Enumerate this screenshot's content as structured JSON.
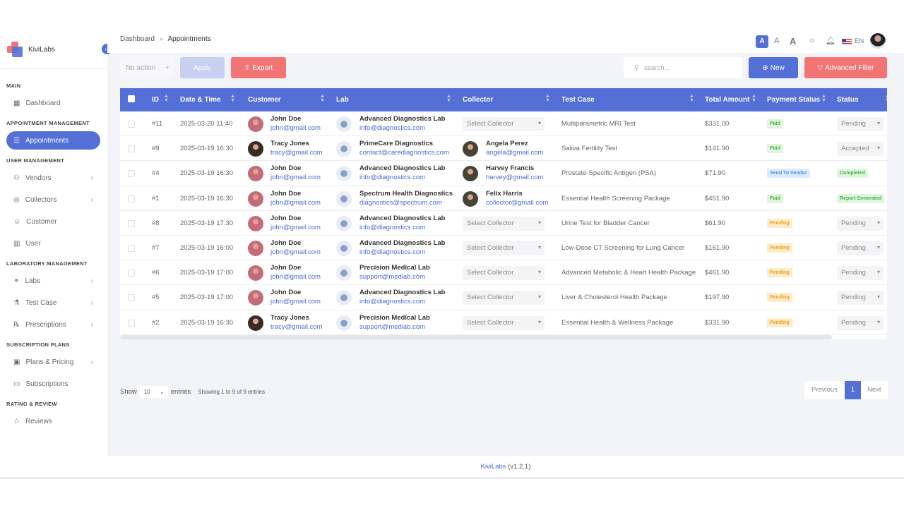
{
  "brand": {
    "name": "KiviLabs",
    "version": "(v1.2.1)"
  },
  "sidebar": {
    "sections": [
      {
        "title": "MAIN",
        "items": [
          {
            "label": "Dashboard",
            "icon": "grid-icon"
          }
        ]
      },
      {
        "title": "APPOINTMENT MANAGEMENT",
        "items": [
          {
            "label": "Appointments",
            "icon": "list-icon",
            "active": true
          }
        ]
      },
      {
        "title": "USER MANAGEMENT",
        "items": [
          {
            "label": "Vendors",
            "icon": "users-icon",
            "chevron": true
          },
          {
            "label": "Collectors",
            "icon": "collector-icon",
            "chevron": true
          },
          {
            "label": "Customer",
            "icon": "user-icon"
          },
          {
            "label": "User",
            "icon": "building-icon"
          }
        ]
      },
      {
        "title": "LABORATORY MANAGEMENT",
        "items": [
          {
            "label": "Labs",
            "icon": "link-icon",
            "chevron": true
          },
          {
            "label": "Test Case",
            "icon": "flask-icon",
            "chevron": true
          },
          {
            "label": "Prescriptions",
            "icon": "rx-icon",
            "chevron": true
          }
        ]
      },
      {
        "title": "SUBSCRIPTION PLANS",
        "items": [
          {
            "label": "Plans & Pricing",
            "icon": "bag-icon",
            "chevron": true
          },
          {
            "label": "Subscriptions",
            "icon": "card-icon"
          }
        ]
      },
      {
        "title": "RATING & REVIEW",
        "items": [
          {
            "label": "Reviews",
            "icon": "star-icon"
          }
        ]
      }
    ]
  },
  "topbar": {
    "font_small": "A",
    "font_medium": "A",
    "font_large": "A",
    "language": "EN"
  },
  "breadcrumb": {
    "parent": "Dashboard",
    "separator": "»",
    "current": "Appointments"
  },
  "toolbar": {
    "action_select": "No action",
    "apply": "Apply",
    "export": "Export",
    "search_placeholder": "search...",
    "new": "New",
    "advanced_filter": "Advanced Filter"
  },
  "table": {
    "headers": [
      "ID",
      "Date & Time",
      "Customer",
      "Lab",
      "Collector",
      "Test Case",
      "Total Amount",
      "Payment Status",
      "Status"
    ],
    "rows": [
      {
        "id": "#11",
        "date": "2025-03-20 11:40",
        "customer": "John Doe",
        "customer_email": "john@gmail.com",
        "lab": "Advanced Diagnostics Lab",
        "lab_email": "info@diagnostics.com",
        "collector": "Select Collector",
        "collector_email": "",
        "test": "Multiparametric MRI Test",
        "amount": "$331.00",
        "payment": "Paid",
        "status": "Pending",
        "status_type": "select"
      },
      {
        "id": "#9",
        "date": "2025-03-19 16:30",
        "customer": "Tracy Jones",
        "customer_email": "tracy@gmail.com",
        "lab": "PrimeCare Diagnostics",
        "lab_email": "contact@carediagnostics.com",
        "collector": "Angela Perez",
        "collector_email": "angela@gmail.com",
        "test": "Saliva Fertility Test",
        "amount": "$141.90",
        "payment": "Paid",
        "status": "Accepted",
        "status_type": "select"
      },
      {
        "id": "#4",
        "date": "2025-03-19 16:30",
        "customer": "John Doe",
        "customer_email": "john@gmail.com",
        "lab": "Advanced Diagnostics Lab",
        "lab_email": "info@diagnostics.com",
        "collector": "Harvey Francis",
        "collector_email": "harvey@gmail.com",
        "test": "Prostate-Specific Antigen (PSA)",
        "amount": "$71.90",
        "payment": "Send To Vendor",
        "status": "Completed",
        "status_type": "badge"
      },
      {
        "id": "#1",
        "date": "2025-03-19 16:30",
        "customer": "John Doe",
        "customer_email": "john@gmail.com",
        "lab": "Spectrum Health Diagnostics",
        "lab_email": "diagnostics@spectrum.com",
        "collector": "Felix Harris",
        "collector_email": "collector@gmail.com",
        "test": "Essential Health Screening Package",
        "amount": "$451.90",
        "payment": "Paid",
        "status": "Report Generated",
        "status_type": "badge"
      },
      {
        "id": "#8",
        "date": "2025-03-19 17:30",
        "customer": "John Doe",
        "customer_email": "john@gmail.com",
        "lab": "Advanced Diagnostics Lab",
        "lab_email": "info@diagnostics.com",
        "collector": "Select Collector",
        "collector_email": "",
        "test": "Urine Test for Bladder Cancer",
        "amount": "$61.90",
        "payment": "Pending",
        "status": "Pending",
        "status_type": "select"
      },
      {
        "id": "#7",
        "date": "2025-03-19 16:00",
        "customer": "John Doe",
        "customer_email": "john@gmail.com",
        "lab": "Advanced Diagnostics Lab",
        "lab_email": "info@diagnostics.com",
        "collector": "Select Collector",
        "collector_email": "",
        "test": "Low-Dose CT Screening for Lung Cancer",
        "amount": "$161.90",
        "payment": "Pending",
        "status": "Pending",
        "status_type": "select"
      },
      {
        "id": "#6",
        "date": "2025-03-19 17:00",
        "customer": "John Doe",
        "customer_email": "john@gmail.com",
        "lab": "Precision Medical Lab",
        "lab_email": "support@medlab.com",
        "collector": "Select Collector",
        "collector_email": "",
        "test": "Advanced Metabolic & Heart Health Package",
        "amount": "$461.90",
        "payment": "Pending",
        "status": "Pending",
        "status_type": "select"
      },
      {
        "id": "#5",
        "date": "2025-03-19 17:00",
        "customer": "John Doe",
        "customer_email": "john@gmail.com",
        "lab": "Advanced Diagnostics Lab",
        "lab_email": "info@diagnostics.com",
        "collector": "Select Collector",
        "collector_email": "",
        "test": "Liver & Cholesterol Health Package",
        "amount": "$197.90",
        "payment": "Pending",
        "status": "Pending",
        "status_type": "select"
      },
      {
        "id": "#2",
        "date": "2025-03-19 16:30",
        "customer": "Tracy Jones",
        "customer_email": "tracy@gmail.com",
        "lab": "Precision Medical Lab",
        "lab_email": "support@medlab.com",
        "collector": "Select Collector",
        "collector_email": "",
        "test": "Essential Health & Wellness Package",
        "amount": "$331.90",
        "payment": "Pending",
        "status": "Pending",
        "status_type": "select"
      }
    ]
  },
  "pagination": {
    "show": "Show",
    "page_size": "10",
    "entries": "entries",
    "info": "Showing 1 to 9 of 9 entries",
    "previous": "Previous",
    "current": "1",
    "next": "Next"
  },
  "colors": {
    "primary": "#5470d6",
    "export": "#f27474",
    "paid_bg": "#dff5dd",
    "paid_fg": "#4caf50",
    "pending_bg": "#fdecc8",
    "pending_fg": "#f0a020",
    "vendor_bg": "#dcecff",
    "vendor_fg": "#4a90e2"
  }
}
